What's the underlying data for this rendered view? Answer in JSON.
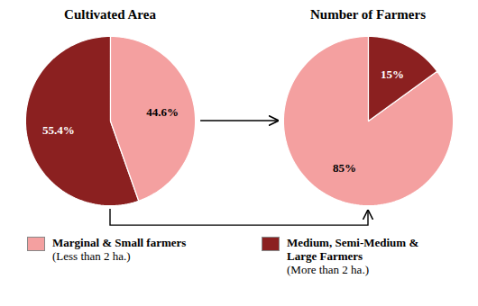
{
  "chart_data": [
    {
      "type": "pie",
      "title": "Cultivated Area",
      "categories": [
        "Medium, Semi-Medium &\nLarge Farmers\n(More than 2 ha.)",
        "Marginal & Small farmers\n(Less than 2 ha.)"
      ],
      "values": [
        55.4,
        44.6
      ],
      "value_labels": [
        "55.4%",
        "44.6%"
      ],
      "colors": [
        "#8B2020",
        "#F4A0A0"
      ],
      "data_labels": true
    },
    {
      "type": "pie",
      "title": "Number of Farmers",
      "categories": [
        "Marginal & Small farmers\n(Less than 2 ha.)",
        "Medium, Semi-Medium &\nLarge Farmers\n(More than 2 ha.)"
      ],
      "values": [
        85,
        15
      ],
      "value_labels": [
        "85%",
        "15%"
      ],
      "colors": [
        "#F4A0A0",
        "#8B2020"
      ],
      "data_labels": true,
      "legend": "bottom"
    }
  ]
}
